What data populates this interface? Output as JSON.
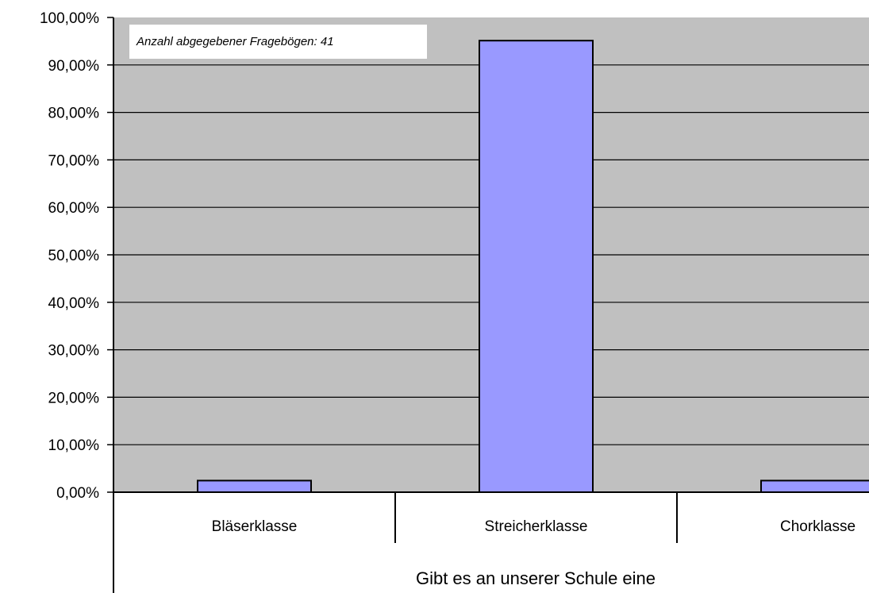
{
  "colors": {
    "plot_background": "#c0c0c0",
    "bar_fill": "#9999ff",
    "bar_stroke": "#000000",
    "gridline": "#000000",
    "note_background": "#ffffff"
  },
  "annotation": "Anzahl abgegebener Fragebögen:  41",
  "chart_data": {
    "type": "bar",
    "title": "",
    "xlabel": "Gibt es an unserer Schule eine",
    "ylabel": "",
    "categories": [
      "Bläserklasse",
      "Streicherklasse",
      "Chorklasse"
    ],
    "values": [
      2.44,
      95.12,
      2.44
    ],
    "ylim": [
      0,
      100
    ],
    "yticks": [
      0,
      10,
      20,
      30,
      40,
      50,
      60,
      70,
      80,
      90,
      100
    ],
    "ytick_labels": [
      "0,00%",
      "10,00%",
      "20,00%",
      "30,00%",
      "40,00%",
      "50,00%",
      "60,00%",
      "70,00%",
      "80,00%",
      "90,00%",
      "100,00%"
    ],
    "grid": true,
    "legend": "none"
  }
}
